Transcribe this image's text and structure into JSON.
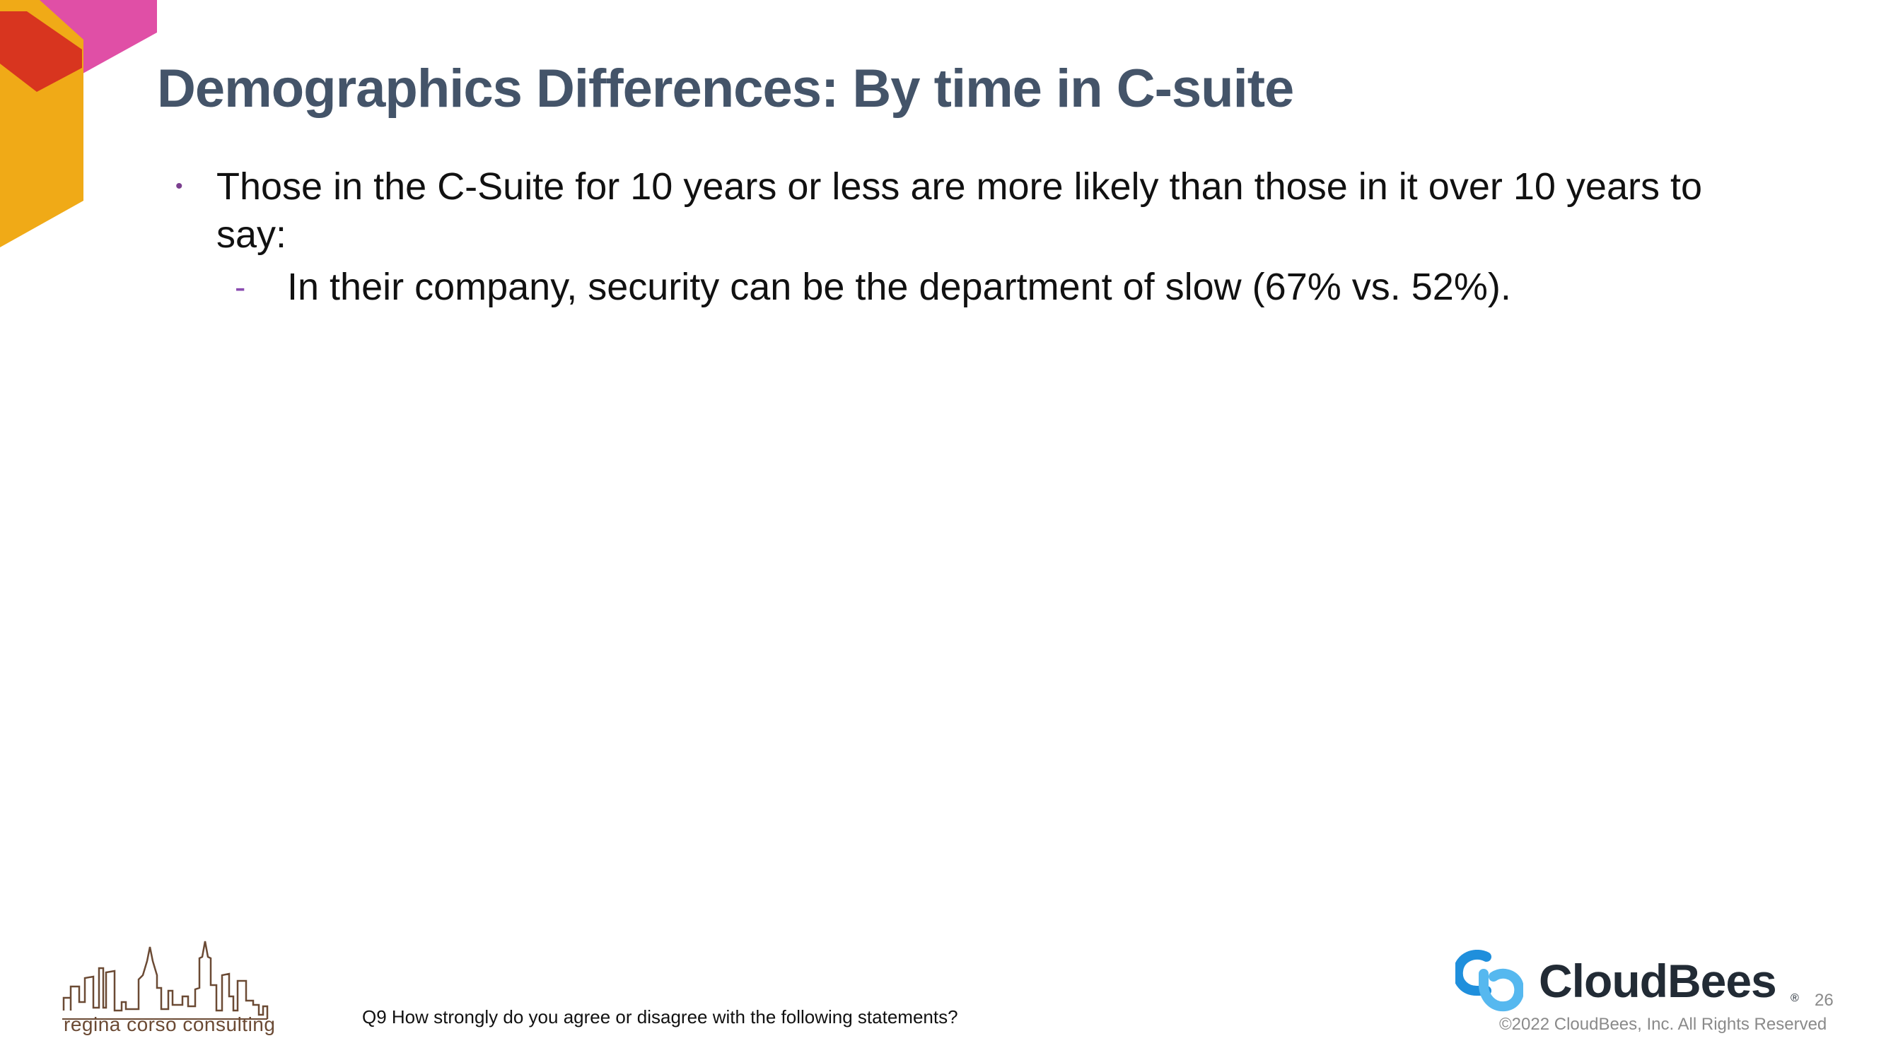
{
  "slide": {
    "title": "Demographics Differences: By time in C-suite",
    "bullets": [
      {
        "text": "Those in the C-Suite for 10 years or less are more likely than those in it over 10 years to say:",
        "marker": "•",
        "sub_bullets": [
          {
            "marker": "-",
            "text": "In their company, security can be the department of slow (67% vs. 52%)."
          }
        ]
      }
    ],
    "footnote": "Q9 How strongly do you agree or disagree with the following statements?",
    "page_number": "26"
  },
  "branding": {
    "partner_logo_text": "regina corso consulting",
    "brand_name": "CloudBees",
    "brand_registered_mark": "®",
    "copyright": "©2022 CloudBees, Inc. All Rights Reserved"
  },
  "colors": {
    "title": "#445469",
    "corner_pink": "#e04fa6",
    "corner_red": "#d8351f",
    "corner_yellow": "#f0aa17",
    "brand_blue": "#1f8fdc",
    "skyline_brown": "#6b4a34"
  },
  "icons": {
    "corner_shape": "decorative-hexagon-shape",
    "partner_logo": "city-skyline-icon",
    "brand_mark": "cloudbees-logo-icon"
  }
}
